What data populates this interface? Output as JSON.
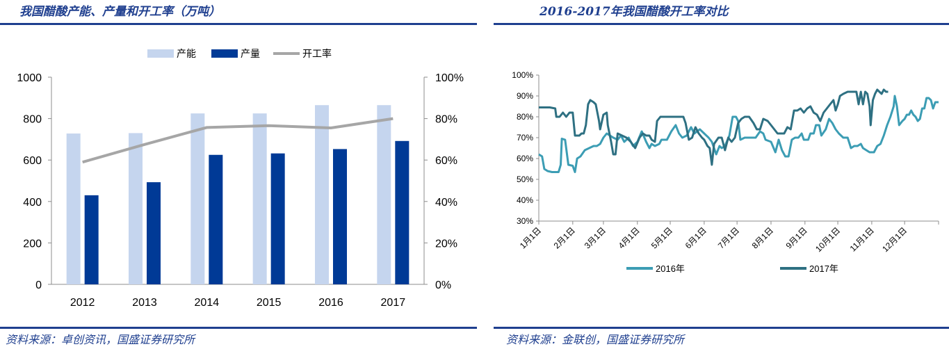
{
  "left_panel": {
    "title": "我国醋酸产能、产量和开工率（万吨）",
    "source": "资料来源：卓创资讯，国盛证券研究所"
  },
  "right_panel": {
    "title": "2016-2017年我国醋酸开工率对比",
    "source": "资料来源：金联创，国盛证券研究所"
  },
  "colors": {
    "capacity": "#c5d5ee",
    "output": "#003a96",
    "rate": "#a6a6a6",
    "line2016": "#3c9db4",
    "line2017": "#2e7082",
    "rule": "#1f3f8f"
  },
  "chart_data": [
    {
      "type": "bar",
      "categories": [
        "2012",
        "2013",
        "2014",
        "2015",
        "2016",
        "2017"
      ],
      "series": [
        {
          "name": "产能",
          "axis": "left",
          "values": [
            728,
            730,
            825,
            825,
            865,
            865
          ]
        },
        {
          "name": "产量",
          "axis": "left",
          "values": [
            430,
            493,
            625,
            632,
            653,
            692
          ]
        },
        {
          "name": "开工率",
          "type": "line",
          "axis": "right",
          "values": [
            0.59,
            0.675,
            0.757,
            0.766,
            0.755,
            0.8
          ]
        }
      ],
      "y_left": {
        "min": 0,
        "max": 1000,
        "ticks": [
          "0",
          "200",
          "400",
          "600",
          "800",
          "1000"
        ]
      },
      "y_right": {
        "min": 0,
        "max": 1,
        "ticks": [
          "0%",
          "20%",
          "40%",
          "60%",
          "80%",
          "100%"
        ]
      },
      "legend_position": "top",
      "grid": false
    },
    {
      "type": "line",
      "x_ticks": [
        "1月1日",
        "2月1日",
        "3月1日",
        "4月1日",
        "5月1日",
        "6月1日",
        "7月1日",
        "8月1日",
        "9月1日",
        "10月1日",
        "11月1日",
        "12月1日"
      ],
      "x_range_days": [
        0,
        365
      ],
      "y": {
        "min": 0.3,
        "max": 1.0,
        "ticks": [
          "30%",
          "40%",
          "50%",
          "60%",
          "70%",
          "80%",
          "90%",
          "100%"
        ]
      },
      "legend_position": "bottom",
      "grid": false,
      "series": [
        {
          "name": "2016年",
          "points": [
            [
              0,
              0.62
            ],
            [
              3,
              0.61
            ],
            [
              5,
              0.55
            ],
            [
              8,
              0.54
            ],
            [
              12,
              0.535
            ],
            [
              18,
              0.535
            ],
            [
              20,
              0.57
            ],
            [
              21,
              0.695
            ],
            [
              24,
              0.69
            ],
            [
              27,
              0.57
            ],
            [
              31,
              0.565
            ],
            [
              33,
              0.535
            ],
            [
              35,
              0.6
            ],
            [
              38,
              0.61
            ],
            [
              42,
              0.64
            ],
            [
              46,
              0.65
            ],
            [
              50,
              0.66
            ],
            [
              53,
              0.66
            ],
            [
              56,
              0.67
            ],
            [
              59,
              0.7
            ],
            [
              62,
              0.72
            ],
            [
              65,
              0.71
            ],
            [
              68,
              0.7
            ],
            [
              72,
              0.69
            ],
            [
              75,
              0.71
            ],
            [
              78,
              0.68
            ],
            [
              82,
              0.7
            ],
            [
              86,
              0.66
            ],
            [
              90,
              0.68
            ],
            [
              94,
              0.73
            ],
            [
              98,
              0.68
            ],
            [
              101,
              0.65
            ],
            [
              103,
              0.67
            ],
            [
              106,
              0.66
            ],
            [
              110,
              0.67
            ],
            [
              112,
              0.69
            ],
            [
              117,
              0.69
            ],
            [
              121,
              0.73
            ],
            [
              125,
              0.76
            ],
            [
              128,
              0.72
            ],
            [
              131,
              0.7
            ],
            [
              135,
              0.71
            ],
            [
              139,
              0.75
            ],
            [
              142,
              0.72
            ],
            [
              147,
              0.74
            ],
            [
              151,
              0.72
            ],
            [
              155,
              0.7
            ],
            [
              158,
              0.68
            ],
            [
              162,
              0.62
            ],
            [
              165,
              0.66
            ],
            [
              167,
              0.65
            ],
            [
              170,
              0.66
            ],
            [
              174,
              0.71
            ],
            [
              177,
              0.8
            ],
            [
              180,
              0.8
            ],
            [
              182,
              0.78
            ],
            [
              184,
              0.69
            ],
            [
              188,
              0.7
            ],
            [
              194,
              0.7
            ],
            [
              198,
              0.7
            ],
            [
              202,
              0.73
            ],
            [
              205,
              0.72
            ],
            [
              207,
              0.69
            ],
            [
              212,
              0.68
            ],
            [
              216,
              0.63
            ],
            [
              219,
              0.69
            ],
            [
              222,
              0.64
            ],
            [
              225,
              0.61
            ],
            [
              228,
              0.61
            ],
            [
              231,
              0.69
            ],
            [
              234,
              0.7
            ],
            [
              237,
              0.7
            ],
            [
              240,
              0.72
            ],
            [
              242,
              0.69
            ],
            [
              246,
              0.69
            ],
            [
              248,
              0.72
            ],
            [
              251,
              0.72
            ],
            [
              253,
              0.76
            ],
            [
              256,
              0.76
            ],
            [
              258,
              0.71
            ],
            [
              262,
              0.74
            ],
            [
              265,
              0.79
            ],
            [
              268,
              0.77
            ],
            [
              271,
              0.74
            ],
            [
              274,
              0.72
            ],
            [
              278,
              0.7
            ],
            [
              282,
              0.7
            ],
            [
              285,
              0.65
            ],
            [
              288,
              0.66
            ],
            [
              291,
              0.66
            ],
            [
              294,
              0.67
            ],
            [
              296,
              0.65
            ],
            [
              299,
              0.64
            ],
            [
              302,
              0.63
            ],
            [
              306,
              0.63
            ],
            [
              309,
              0.66
            ],
            [
              312,
              0.67
            ],
            [
              315,
              0.71
            ],
            [
              318,
              0.76
            ],
            [
              321,
              0.8
            ],
            [
              324,
              0.85
            ],
            [
              325,
              0.9
            ],
            [
              327,
              0.85
            ],
            [
              329,
              0.76
            ],
            [
              332,
              0.78
            ],
            [
              334,
              0.79
            ],
            [
              336,
              0.81
            ],
            [
              338,
              0.81
            ],
            [
              340,
              0.83
            ],
            [
              342,
              0.81
            ],
            [
              344,
              0.8
            ],
            [
              346,
              0.78
            ],
            [
              348,
              0.79
            ],
            [
              350,
              0.84
            ],
            [
              352,
              0.84
            ],
            [
              354,
              0.89
            ],
            [
              356,
              0.89
            ],
            [
              358,
              0.88
            ],
            [
              360,
              0.84
            ],
            [
              362,
              0.87
            ],
            [
              365,
              0.87
            ]
          ]
        },
        {
          "name": "2017年",
          "points": [
            [
              0,
              0.845
            ],
            [
              5,
              0.845
            ],
            [
              10,
              0.845
            ],
            [
              15,
              0.84
            ],
            [
              16,
              0.8
            ],
            [
              19,
              0.8
            ],
            [
              22,
              0.82
            ],
            [
              25,
              0.8
            ],
            [
              28,
              0.82
            ],
            [
              31,
              0.82
            ],
            [
              33,
              0.71
            ],
            [
              37,
              0.71
            ],
            [
              39,
              0.72
            ],
            [
              41,
              0.72
            ],
            [
              43,
              0.76
            ],
            [
              45,
              0.86
            ],
            [
              47,
              0.88
            ],
            [
              50,
              0.87
            ],
            [
              52,
              0.86
            ],
            [
              55,
              0.78
            ],
            [
              56,
              0.74
            ],
            [
              59,
              0.81
            ],
            [
              62,
              0.82
            ],
            [
              63,
              0.76
            ],
            [
              66,
              0.68
            ],
            [
              68,
              0.62
            ],
            [
              70,
              0.62
            ],
            [
              72,
              0.72
            ],
            [
              76,
              0.71
            ],
            [
              80,
              0.7
            ],
            [
              84,
              0.68
            ],
            [
              88,
              0.65
            ],
            [
              92,
              0.7
            ],
            [
              95,
              0.72
            ],
            [
              98,
              0.71
            ],
            [
              101,
              0.71
            ],
            [
              103,
              0.69
            ],
            [
              106,
              0.68
            ],
            [
              108,
              0.78
            ],
            [
              111,
              0.8
            ],
            [
              114,
              0.8
            ],
            [
              118,
              0.8
            ],
            [
              122,
              0.8
            ],
            [
              126,
              0.8
            ],
            [
              132,
              0.8
            ],
            [
              134,
              0.77
            ],
            [
              137,
              0.69
            ],
            [
              140,
              0.7
            ],
            [
              143,
              0.75
            ],
            [
              146,
              0.72
            ],
            [
              149,
              0.7
            ],
            [
              151,
              0.69
            ],
            [
              154,
              0.66
            ],
            [
              156,
              0.65
            ],
            [
              158,
              0.57
            ],
            [
              160,
              0.67
            ],
            [
              164,
              0.7
            ],
            [
              167,
              0.7
            ],
            [
              170,
              0.64
            ],
            [
              173,
              0.7
            ],
            [
              176,
              0.68
            ],
            [
              179,
              0.7
            ],
            [
              182,
              0.77
            ],
            [
              185,
              0.79
            ],
            [
              188,
              0.8
            ],
            [
              192,
              0.8
            ],
            [
              196,
              0.77
            ],
            [
              199,
              0.74
            ],
            [
              202,
              0.74
            ],
            [
              205,
              0.79
            ],
            [
              209,
              0.78
            ],
            [
              212,
              0.76
            ],
            [
              215,
              0.74
            ],
            [
              218,
              0.72
            ],
            [
              221,
              0.72
            ],
            [
              224,
              0.72
            ],
            [
              227,
              0.75
            ],
            [
              230,
              0.74
            ],
            [
              233,
              0.83
            ],
            [
              236,
              0.83
            ],
            [
              239,
              0.84
            ],
            [
              242,
              0.82
            ],
            [
              245,
              0.84
            ],
            [
              248,
              0.85
            ],
            [
              251,
              0.82
            ],
            [
              254,
              0.81
            ],
            [
              257,
              0.78
            ],
            [
              260,
              0.82
            ],
            [
              263,
              0.84
            ],
            [
              266,
              0.86
            ],
            [
              269,
              0.88
            ],
            [
              271,
              0.83
            ],
            [
              273,
              0.86
            ],
            [
              275,
              0.9
            ],
            [
              278,
              0.91
            ],
            [
              282,
              0.92
            ],
            [
              286,
              0.92
            ],
            [
              290,
              0.92
            ],
            [
              292,
              0.86
            ],
            [
              294,
              0.92
            ],
            [
              296,
              0.86
            ],
            [
              298,
              0.92
            ],
            [
              300,
              0.91
            ],
            [
              302,
              0.85
            ],
            [
              303,
              0.76
            ],
            [
              305,
              0.88
            ],
            [
              307,
              0.91
            ],
            [
              309,
              0.93
            ],
            [
              311,
              0.92
            ],
            [
              313,
              0.91
            ],
            [
              315,
              0.93
            ],
            [
              317,
              0.92
            ],
            [
              319,
              0.92
            ]
          ]
        }
      ]
    }
  ]
}
